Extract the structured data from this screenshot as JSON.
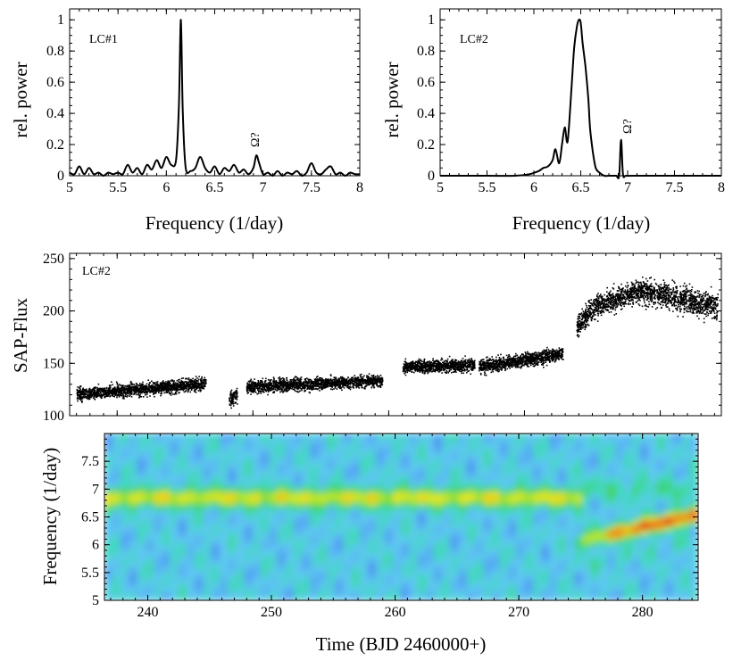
{
  "chart_data": [
    {
      "type": "line",
      "id": "periodogram-lc1",
      "panel_label": "LC#1",
      "xlabel": "Frequency (1/day)",
      "ylabel": "rel. power",
      "xlim": [
        5,
        8
      ],
      "ylim": [
        0,
        1.07
      ],
      "xticks": [
        5,
        5.5,
        6,
        6.5,
        7,
        7.5,
        8
      ],
      "xtick_labels": [
        "5",
        "5.5",
        "6",
        "6.5",
        "7",
        "7.5",
        "8"
      ],
      "yticks": [
        0,
        0.2,
        0.4,
        0.6,
        0.8,
        1
      ],
      "ytick_labels": [
        "0",
        "0.2",
        "0.4",
        "0.6",
        "0.8",
        "1"
      ],
      "annotation": {
        "text": "Ω?",
        "x": 6.93,
        "y": 0.22
      },
      "x": [
        5.0,
        5.05,
        5.1,
        5.15,
        5.2,
        5.25,
        5.3,
        5.35,
        5.4,
        5.45,
        5.5,
        5.55,
        5.6,
        5.65,
        5.7,
        5.75,
        5.8,
        5.85,
        5.9,
        5.95,
        6.0,
        6.05,
        6.1,
        6.13,
        6.15,
        6.17,
        6.2,
        6.25,
        6.3,
        6.35,
        6.4,
        6.45,
        6.5,
        6.55,
        6.6,
        6.65,
        6.7,
        6.75,
        6.8,
        6.85,
        6.9,
        6.93,
        6.96,
        7.0,
        7.05,
        7.1,
        7.15,
        7.2,
        7.25,
        7.3,
        7.35,
        7.4,
        7.45,
        7.5,
        7.55,
        7.6,
        7.65,
        7.7,
        7.75,
        7.8,
        7.85,
        7.9,
        7.95,
        8.0
      ],
      "y": [
        0.02,
        0.01,
        0.06,
        0.01,
        0.05,
        0.01,
        0.02,
        0.0,
        0.02,
        0.01,
        0.02,
        0.01,
        0.07,
        0.02,
        0.05,
        0.01,
        0.07,
        0.04,
        0.1,
        0.05,
        0.12,
        0.07,
        0.1,
        0.45,
        1.0,
        0.4,
        0.05,
        0.03,
        0.05,
        0.12,
        0.05,
        0.02,
        0.06,
        0.01,
        0.05,
        0.03,
        0.07,
        0.02,
        0.04,
        0.01,
        0.05,
        0.13,
        0.08,
        0.01,
        0.02,
        0.0,
        0.03,
        0.0,
        0.02,
        0.01,
        0.03,
        0.0,
        0.02,
        0.08,
        0.02,
        0.01,
        0.04,
        0.06,
        0.01,
        0.02,
        0.0,
        0.02,
        0.01,
        0.01
      ]
    },
    {
      "type": "line",
      "id": "periodogram-lc2",
      "panel_label": "LC#2",
      "xlabel": "Frequency (1/day)",
      "ylabel": "rel. power",
      "xlim": [
        5,
        8
      ],
      "ylim": [
        0,
        1.07
      ],
      "xticks": [
        5,
        5.5,
        6,
        6.5,
        7,
        7.5,
        8
      ],
      "xtick_labels": [
        "5",
        "5.5",
        "6",
        "6.5",
        "7",
        "7.5",
        "8"
      ],
      "yticks": [
        0,
        0.2,
        0.4,
        0.6,
        0.8,
        1
      ],
      "ytick_labels": [
        "0",
        "0.2",
        "0.4",
        "0.6",
        "0.8",
        "1"
      ],
      "annotation": {
        "text": "Ω?",
        "x": 6.93,
        "y": 0.32
      },
      "x": [
        5.0,
        5.5,
        5.8,
        5.95,
        6.05,
        6.1,
        6.15,
        6.2,
        6.23,
        6.27,
        6.3,
        6.33,
        6.36,
        6.4,
        6.43,
        6.46,
        6.48,
        6.5,
        6.52,
        6.55,
        6.58,
        6.6,
        6.63,
        6.66,
        6.7,
        6.75,
        6.8,
        6.85,
        6.88,
        6.91,
        6.93,
        6.95,
        6.98,
        7.05,
        7.3,
        7.6,
        8.0
      ],
      "y": [
        0.0,
        0.0,
        0.0,
        0.01,
        0.03,
        0.05,
        0.06,
        0.1,
        0.17,
        0.08,
        0.2,
        0.31,
        0.22,
        0.55,
        0.82,
        0.96,
        1.0,
        0.98,
        0.85,
        0.7,
        0.5,
        0.3,
        0.15,
        0.05,
        0.02,
        0.0,
        0.0,
        0.0,
        0.0,
        0.0,
        0.23,
        0.01,
        0.0,
        0.0,
        0.0,
        0.0,
        0.0
      ]
    },
    {
      "type": "scatter",
      "id": "light-curve-lc2",
      "panel_label": "LC#2",
      "xlabel": "",
      "ylabel": "SAP-Flux",
      "xlim": [
        236.5,
        284.5
      ],
      "ylim": [
        100,
        255
      ],
      "yticks": [
        100,
        150,
        200,
        250
      ],
      "ytick_labels": [
        "100",
        "150",
        "200",
        "250"
      ],
      "segments": [
        {
          "t0": 237.0,
          "t1": 246.5,
          "f0": 121,
          "f1": 131,
          "scatter": 10
        },
        {
          "t0": 248.2,
          "t1": 248.8,
          "f0": 116,
          "f1": 121,
          "scatter": 12
        },
        {
          "t0": 249.5,
          "t1": 259.5,
          "f0": 128,
          "f1": 134,
          "scatter": 10
        },
        {
          "t0": 261.0,
          "t1": 266.3,
          "f0": 147,
          "f1": 149,
          "scatter": 10
        },
        {
          "t0": 266.6,
          "t1": 272.8,
          "f0": 147,
          "f1": 160,
          "scatter": 11
        },
        {
          "t0": 273.8,
          "t1": 278.5,
          "f0": 199,
          "f1": 220,
          "scatter": 18
        },
        {
          "t0": 278.5,
          "t1": 284.2,
          "f0": 220,
          "f1": 205,
          "scatter": 20
        }
      ]
    },
    {
      "type": "heatmap",
      "id": "dynamic-periodogram",
      "xlabel": "Time (BJD 2460000+)",
      "ylabel": "Frequency (1/day)",
      "xlim": [
        236.5,
        284.5
      ],
      "ylim": [
        5,
        8
      ],
      "xticks": [
        240,
        250,
        260,
        270,
        280
      ],
      "xtick_labels": [
        "240",
        "250",
        "260",
        "270",
        "280"
      ],
      "yticks": [
        5,
        5.5,
        6,
        6.5,
        7,
        7.5
      ],
      "ytick_labels": [
        "5",
        "5.5",
        "6",
        "6.5",
        "7",
        "7.5"
      ],
      "colormap": [
        "#1e3cd2",
        "#4f8ff5",
        "#5ec8f2",
        "#3fdab7",
        "#3ecf52",
        "#a7e62b",
        "#f6e619",
        "#f58a12",
        "#e3161c"
      ],
      "features": [
        {
          "description": "persistent ridge",
          "t_start": 237,
          "t_end": 275,
          "freq": 6.85,
          "level": 0.45
        },
        {
          "description": "strong signal",
          "t_start": 274.5,
          "t_end": 284.5,
          "freq_start": 6.05,
          "freq_end": 6.55,
          "level": 1.0
        }
      ]
    }
  ]
}
